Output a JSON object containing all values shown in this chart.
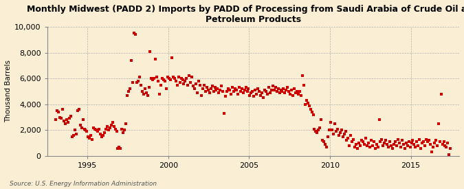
{
  "title": "Monthly Midwest (PADD 2) Imports by PADD of Processing from Saudi Arabia of Crude Oil and\nPetroleum Products",
  "ylabel": "Thousand Barrels",
  "source": "Source: U.S. Energy Information Administration",
  "background_color": "#faefd4",
  "dot_color": "#cc0000",
  "ylim": [
    0,
    10000
  ],
  "yticks": [
    0,
    2000,
    4000,
    6000,
    8000,
    10000
  ],
  "xlim_start": 1992.5,
  "xlim_end": 2018.0,
  "xticks": [
    1995,
    2000,
    2005,
    2010,
    2015
  ],
  "data_points": [
    [
      1993,
      1,
      2800
    ],
    [
      1993,
      2,
      3500
    ],
    [
      1993,
      3,
      3400
    ],
    [
      1993,
      4,
      3000
    ],
    [
      1993,
      5,
      2900
    ],
    [
      1993,
      6,
      3600
    ],
    [
      1993,
      7,
      2700
    ],
    [
      1993,
      8,
      2500
    ],
    [
      1993,
      9,
      2800
    ],
    [
      1993,
      10,
      2600
    ],
    [
      1993,
      11,
      2900
    ],
    [
      1993,
      12,
      3100
    ],
    [
      1994,
      1,
      1500
    ],
    [
      1994,
      2,
      1600
    ],
    [
      1994,
      3,
      2000
    ],
    [
      1994,
      4,
      1700
    ],
    [
      1994,
      5,
      3500
    ],
    [
      1994,
      6,
      3600
    ],
    [
      1994,
      7,
      2400
    ],
    [
      1994,
      8,
      2200
    ],
    [
      1994,
      9,
      2800
    ],
    [
      1994,
      10,
      2100
    ],
    [
      1994,
      11,
      2000
    ],
    [
      1994,
      12,
      1900
    ],
    [
      1995,
      1,
      1500
    ],
    [
      1995,
      2,
      1400
    ],
    [
      1995,
      3,
      1600
    ],
    [
      1995,
      4,
      1300
    ],
    [
      1995,
      5,
      2200
    ],
    [
      1995,
      6,
      2100
    ],
    [
      1995,
      7,
      2000
    ],
    [
      1995,
      8,
      1900
    ],
    [
      1995,
      9,
      2100
    ],
    [
      1995,
      10,
      1700
    ],
    [
      1995,
      11,
      1500
    ],
    [
      1995,
      12,
      1600
    ],
    [
      1996,
      1,
      1800
    ],
    [
      1996,
      2,
      2100
    ],
    [
      1996,
      3,
      2300
    ],
    [
      1996,
      4,
      2000
    ],
    [
      1996,
      5,
      2200
    ],
    [
      1996,
      6,
      2400
    ],
    [
      1996,
      7,
      2600
    ],
    [
      1996,
      8,
      2300
    ],
    [
      1996,
      9,
      2100
    ],
    [
      1996,
      10,
      1900
    ],
    [
      1996,
      11,
      600
    ],
    [
      1996,
      12,
      700
    ],
    [
      1997,
      1,
      600
    ],
    [
      1997,
      2,
      2100
    ],
    [
      1997,
      3,
      1800
    ],
    [
      1997,
      4,
      2000
    ],
    [
      1997,
      5,
      2500
    ],
    [
      1997,
      6,
      4700
    ],
    [
      1997,
      7,
      5000
    ],
    [
      1997,
      8,
      5200
    ],
    [
      1997,
      9,
      7400
    ],
    [
      1997,
      10,
      5700
    ],
    [
      1997,
      11,
      9500
    ],
    [
      1997,
      12,
      9400
    ],
    [
      1998,
      1,
      5700
    ],
    [
      1998,
      2,
      5800
    ],
    [
      1998,
      3,
      6100
    ],
    [
      1998,
      4,
      5500
    ],
    [
      1998,
      5,
      5000
    ],
    [
      1998,
      6,
      4800
    ],
    [
      1998,
      7,
      5200
    ],
    [
      1998,
      8,
      4900
    ],
    [
      1998,
      9,
      4700
    ],
    [
      1998,
      10,
      5300
    ],
    [
      1998,
      11,
      8100
    ],
    [
      1998,
      12,
      6000
    ],
    [
      1999,
      1,
      5900
    ],
    [
      1999,
      2,
      6000
    ],
    [
      1999,
      3,
      7500
    ],
    [
      1999,
      4,
      6100
    ],
    [
      1999,
      5,
      5800
    ],
    [
      1999,
      6,
      4800
    ],
    [
      1999,
      7,
      5500
    ],
    [
      1999,
      8,
      6000
    ],
    [
      1999,
      9,
      5900
    ],
    [
      1999,
      10,
      5800
    ],
    [
      1999,
      11,
      5200
    ],
    [
      1999,
      12,
      6100
    ],
    [
      2000,
      1,
      6000
    ],
    [
      2000,
      2,
      5900
    ],
    [
      2000,
      3,
      7600
    ],
    [
      2000,
      4,
      6100
    ],
    [
      2000,
      5,
      6000
    ],
    [
      2000,
      6,
      5800
    ],
    [
      2000,
      7,
      5500
    ],
    [
      2000,
      8,
      6100
    ],
    [
      2000,
      9,
      5700
    ],
    [
      2000,
      10,
      6000
    ],
    [
      2000,
      11,
      5900
    ],
    [
      2000,
      12,
      5600
    ],
    [
      2001,
      1,
      5800
    ],
    [
      2001,
      2,
      6000
    ],
    [
      2001,
      3,
      5500
    ],
    [
      2001,
      4,
      6200
    ],
    [
      2001,
      5,
      5700
    ],
    [
      2001,
      6,
      6100
    ],
    [
      2001,
      7,
      5400
    ],
    [
      2001,
      8,
      5200
    ],
    [
      2001,
      9,
      5600
    ],
    [
      2001,
      10,
      4900
    ],
    [
      2001,
      11,
      5800
    ],
    [
      2001,
      12,
      5500
    ],
    [
      2002,
      1,
      4700
    ],
    [
      2002,
      2,
      5200
    ],
    [
      2002,
      3,
      5500
    ],
    [
      2002,
      4,
      5000
    ],
    [
      2002,
      5,
      5300
    ],
    [
      2002,
      6,
      5100
    ],
    [
      2002,
      7,
      4900
    ],
    [
      2002,
      8,
      5200
    ],
    [
      2002,
      9,
      5400
    ],
    [
      2002,
      10,
      5000
    ],
    [
      2002,
      11,
      5300
    ],
    [
      2002,
      12,
      5100
    ],
    [
      2003,
      1,
      5200
    ],
    [
      2003,
      2,
      4900
    ],
    [
      2003,
      3,
      5100
    ],
    [
      2003,
      4,
      5400
    ],
    [
      2003,
      5,
      5000
    ],
    [
      2003,
      6,
      3300
    ],
    [
      2003,
      7,
      4600
    ],
    [
      2003,
      8,
      5000
    ],
    [
      2003,
      9,
      5200
    ],
    [
      2003,
      10,
      5100
    ],
    [
      2003,
      11,
      4800
    ],
    [
      2003,
      12,
      5300
    ],
    [
      2004,
      1,
      5000
    ],
    [
      2004,
      2,
      5200
    ],
    [
      2004,
      3,
      5100
    ],
    [
      2004,
      4,
      4800
    ],
    [
      2004,
      5,
      5300
    ],
    [
      2004,
      6,
      5000
    ],
    [
      2004,
      7,
      5200
    ],
    [
      2004,
      8,
      4900
    ],
    [
      2004,
      9,
      5100
    ],
    [
      2004,
      10,
      5300
    ],
    [
      2004,
      11,
      5000
    ],
    [
      2004,
      12,
      5200
    ],
    [
      2005,
      1,
      4700
    ],
    [
      2005,
      2,
      4900
    ],
    [
      2005,
      3,
      5000
    ],
    [
      2005,
      4,
      4600
    ],
    [
      2005,
      5,
      5100
    ],
    [
      2005,
      6,
      4800
    ],
    [
      2005,
      7,
      5200
    ],
    [
      2005,
      8,
      5000
    ],
    [
      2005,
      9,
      4700
    ],
    [
      2005,
      10,
      4900
    ],
    [
      2005,
      11,
      4500
    ],
    [
      2005,
      12,
      5100
    ],
    [
      2006,
      1,
      5000
    ],
    [
      2006,
      2,
      4800
    ],
    [
      2006,
      3,
      5300
    ],
    [
      2006,
      4,
      4900
    ],
    [
      2006,
      5,
      5100
    ],
    [
      2006,
      6,
      5400
    ],
    [
      2006,
      7,
      5100
    ],
    [
      2006,
      8,
      5300
    ],
    [
      2006,
      9,
      5000
    ],
    [
      2006,
      10,
      5200
    ],
    [
      2006,
      11,
      4900
    ],
    [
      2006,
      12,
      5100
    ],
    [
      2007,
      1,
      5000
    ],
    [
      2007,
      2,
      5200
    ],
    [
      2007,
      3,
      4900
    ],
    [
      2007,
      4,
      5100
    ],
    [
      2007,
      5,
      5300
    ],
    [
      2007,
      6,
      5000
    ],
    [
      2007,
      7,
      4800
    ],
    [
      2007,
      8,
      5100
    ],
    [
      2007,
      9,
      4700
    ],
    [
      2007,
      10,
      5200
    ],
    [
      2007,
      11,
      4900
    ],
    [
      2007,
      12,
      5000
    ],
    [
      2008,
      1,
      4800
    ],
    [
      2008,
      2,
      5000
    ],
    [
      2008,
      3,
      4700
    ],
    [
      2008,
      4,
      6200
    ],
    [
      2008,
      5,
      5500
    ],
    [
      2008,
      6,
      4000
    ],
    [
      2008,
      7,
      4300
    ],
    [
      2008,
      8,
      4100
    ],
    [
      2008,
      9,
      3900
    ],
    [
      2008,
      10,
      3600
    ],
    [
      2008,
      11,
      3400
    ],
    [
      2008,
      12,
      3200
    ],
    [
      2009,
      1,
      2100
    ],
    [
      2009,
      2,
      1900
    ],
    [
      2009,
      3,
      1800
    ],
    [
      2009,
      4,
      2000
    ],
    [
      2009,
      5,
      2200
    ],
    [
      2009,
      6,
      2800
    ],
    [
      2009,
      7,
      1200
    ],
    [
      2009,
      8,
      1100
    ],
    [
      2009,
      9,
      900
    ],
    [
      2009,
      10,
      700
    ],
    [
      2009,
      11,
      1500
    ],
    [
      2009,
      12,
      2000
    ],
    [
      2010,
      1,
      2600
    ],
    [
      2010,
      2,
      2000
    ],
    [
      2010,
      3,
      1700
    ],
    [
      2010,
      4,
      2500
    ],
    [
      2010,
      5,
      1900
    ],
    [
      2010,
      6,
      2100
    ],
    [
      2010,
      7,
      1600
    ],
    [
      2010,
      8,
      1800
    ],
    [
      2010,
      9,
      2000
    ],
    [
      2010,
      10,
      1500
    ],
    [
      2010,
      11,
      1700
    ],
    [
      2010,
      12,
      1900
    ],
    [
      2011,
      1,
      1200
    ],
    [
      2011,
      2,
      1400
    ],
    [
      2011,
      3,
      800
    ],
    [
      2011,
      4,
      1600
    ],
    [
      2011,
      5,
      1100
    ],
    [
      2011,
      6,
      1300
    ],
    [
      2011,
      7,
      700
    ],
    [
      2011,
      8,
      900
    ],
    [
      2011,
      9,
      600
    ],
    [
      2011,
      10,
      1000
    ],
    [
      2011,
      11,
      800
    ],
    [
      2011,
      12,
      1200
    ],
    [
      2012,
      1,
      1100
    ],
    [
      2012,
      2,
      900
    ],
    [
      2012,
      3,
      1400
    ],
    [
      2012,
      4,
      800
    ],
    [
      2012,
      5,
      1000
    ],
    [
      2012,
      6,
      700
    ],
    [
      2012,
      7,
      1200
    ],
    [
      2012,
      8,
      800
    ],
    [
      2012,
      9,
      1100
    ],
    [
      2012,
      10,
      600
    ],
    [
      2012,
      11,
      900
    ],
    [
      2012,
      12,
      700
    ],
    [
      2013,
      1,
      2800
    ],
    [
      2013,
      2,
      1100
    ],
    [
      2013,
      3,
      1300
    ],
    [
      2013,
      4,
      800
    ],
    [
      2013,
      5,
      1000
    ],
    [
      2013,
      6,
      1200
    ],
    [
      2013,
      7,
      900
    ],
    [
      2013,
      8,
      700
    ],
    [
      2013,
      9,
      1100
    ],
    [
      2013,
      10,
      800
    ],
    [
      2013,
      11,
      600
    ],
    [
      2013,
      12,
      900
    ],
    [
      2014,
      1,
      1100
    ],
    [
      2014,
      2,
      800
    ],
    [
      2014,
      3,
      1300
    ],
    [
      2014,
      4,
      1000
    ],
    [
      2014,
      5,
      700
    ],
    [
      2014,
      6,
      1200
    ],
    [
      2014,
      7,
      900
    ],
    [
      2014,
      8,
      600
    ],
    [
      2014,
      9,
      1000
    ],
    [
      2014,
      10,
      800
    ],
    [
      2014,
      11,
      1100
    ],
    [
      2014,
      12,
      700
    ],
    [
      2015,
      1,
      1000
    ],
    [
      2015,
      2,
      1200
    ],
    [
      2015,
      3,
      900
    ],
    [
      2015,
      4,
      700
    ],
    [
      2015,
      5,
      1100
    ],
    [
      2015,
      6,
      800
    ],
    [
      2015,
      7,
      1300
    ],
    [
      2015,
      8,
      600
    ],
    [
      2015,
      9,
      1000
    ],
    [
      2015,
      10,
      1100
    ],
    [
      2015,
      11,
      800
    ],
    [
      2015,
      12,
      1300
    ],
    [
      2016,
      1,
      1100
    ],
    [
      2016,
      2,
      1200
    ],
    [
      2016,
      3,
      900
    ],
    [
      2016,
      4,
      300
    ],
    [
      2016,
      5,
      700
    ],
    [
      2016,
      6,
      1000
    ],
    [
      2016,
      7,
      1200
    ],
    [
      2016,
      8,
      800
    ],
    [
      2016,
      9,
      2500
    ],
    [
      2016,
      10,
      1100
    ],
    [
      2016,
      11,
      4800
    ],
    [
      2016,
      12,
      900
    ],
    [
      2017,
      1,
      1100
    ],
    [
      2017,
      2,
      800
    ],
    [
      2017,
      3,
      700
    ],
    [
      2017,
      4,
      1000
    ],
    [
      2017,
      5,
      100
    ],
    [
      2017,
      6,
      600
    ]
  ]
}
